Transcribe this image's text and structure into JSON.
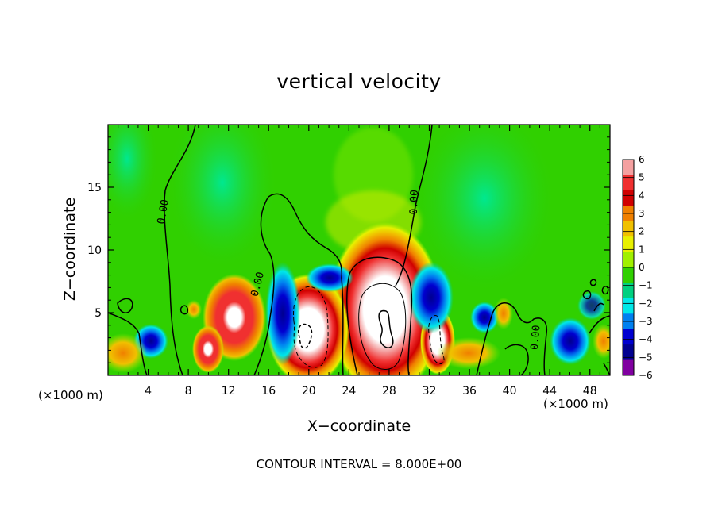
{
  "chart_data": {
    "type": "heatmap",
    "title": "vertical velocity",
    "xlabel": "X−coordinate",
    "ylabel": "Z−coordinate",
    "x_unit_left": "(×1000 m)",
    "x_unit_right": "(×1000 m)",
    "xlim": [
      0,
      50
    ],
    "ylim": [
      0,
      20
    ],
    "x_ticks": [
      4,
      8,
      12,
      16,
      20,
      24,
      28,
      32,
      36,
      40,
      44,
      48
    ],
    "y_ticks": [
      5,
      10,
      15
    ],
    "x_tick_labels": [
      "4",
      "8",
      "12",
      "16",
      "20",
      "24",
      "28",
      "32",
      "36",
      "40",
      "44",
      "48"
    ],
    "y_tick_labels": [
      "5",
      "10",
      "15"
    ],
    "colorbar": {
      "levels": [
        6,
        5,
        4,
        3,
        2,
        1,
        0,
        -1,
        -2,
        -3,
        -4,
        -5,
        -6
      ],
      "labels": [
        "6",
        "5",
        "4",
        "3",
        "2",
        "1",
        "0",
        "−1",
        "−2",
        "−3",
        "−4",
        "−5",
        "−6"
      ],
      "colors": [
        "#f4a0a0",
        "#f03030",
        "#d00000",
        "#f08000",
        "#f0c000",
        "#e8f000",
        "#a0f000",
        "#30d000",
        "#00d080",
        "#00e8e8",
        "#0080f0",
        "#0000d0",
        "#000090",
        "#8000a0"
      ]
    },
    "contour_labels": [
      {
        "text": "0.00",
        "x": 5.8,
        "z": 13.0,
        "rot": -80
      },
      {
        "text": "0.00",
        "x": 15.2,
        "z": 7.2,
        "rot": -75
      },
      {
        "text": "0.00",
        "x": 30.8,
        "z": 13.8,
        "rot": -88
      },
      {
        "text": "0.00",
        "x": 42.9,
        "z": 3.0,
        "rot": -85
      }
    ],
    "features": [
      {
        "kind": "updraft",
        "x": 27.6,
        "z": 5.0,
        "rx": 4.2,
        "rz": 8.0
      },
      {
        "kind": "updraft",
        "x": 20.0,
        "z": 3.7,
        "rx": 3.6,
        "rz": 4.0
      },
      {
        "kind": "updraft",
        "x": 13.0,
        "z": 4.2,
        "rx": 2.4,
        "rz": 3.4
      },
      {
        "kind": "updraft",
        "x": 33.0,
        "z": 3.4,
        "rx": 1.4,
        "rz": 3.0
      },
      {
        "kind": "downdraft",
        "x": 32.3,
        "z": 5.6,
        "rx": 1.6,
        "rz": 3.0
      },
      {
        "kind": "downdraft",
        "x": 17.4,
        "z": 5.0,
        "rx": 1.2,
        "rz": 4.0
      },
      {
        "kind": "downdraft",
        "x": 45.8,
        "z": 2.8,
        "rx": 1.5,
        "rz": 2.0
      },
      {
        "kind": "downdraft",
        "x": 3.8,
        "z": 2.8,
        "rx": 1.5,
        "rz": 1.8
      }
    ],
    "grid": false,
    "legend": "right"
  },
  "footer": "CONTOUR INTERVAL = 8.000E+00"
}
